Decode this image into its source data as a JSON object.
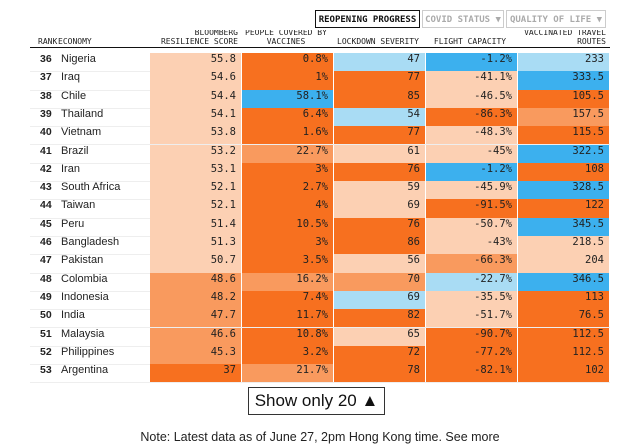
{
  "tabs": [
    "REOPENING PROGRESS",
    "COVID STATUS ▼",
    "QUALITY OF LIFE ▼"
  ],
  "columns": [
    "RANK",
    "ECONOMY",
    "BLOOMBERG RESILIENCE SCORE",
    "PEOPLE COVERED BY VACCINES",
    "LOCKDOWN SEVERITY",
    "FLIGHT CAPACITY",
    "VACCINATED TRAVEL ROUTES"
  ],
  "rows": [
    {
      "rank": "36",
      "economy": "Nigeria",
      "cells": [
        "55.8",
        "0.8%",
        "47",
        "-1.2%",
        "233"
      ],
      "colors": [
        "#fcd0b3",
        "#f7701f",
        "#a9dcf4",
        "#3cb0ee",
        "#a9dcf4"
      ]
    },
    {
      "rank": "37",
      "economy": "Iraq",
      "cells": [
        "54.6",
        "1%",
        "77",
        "-41.1%",
        "333.5"
      ],
      "colors": [
        "#fcd0b3",
        "#f7701f",
        "#f7701f",
        "#fcd0b3",
        "#3cb0ee"
      ]
    },
    {
      "rank": "38",
      "economy": "Chile",
      "cells": [
        "54.4",
        "58.1%",
        "85",
        "-46.5%",
        "105.5"
      ],
      "colors": [
        "#fcd0b3",
        "#3cb0ee",
        "#f7701f",
        "#fcd0b3",
        "#f7701f"
      ]
    },
    {
      "rank": "39",
      "economy": "Thailand",
      "cells": [
        "54.1",
        "6.4%",
        "54",
        "-86.3%",
        "157.5"
      ],
      "colors": [
        "#fcd0b3",
        "#f7701f",
        "#a9dcf4",
        "#f7701f",
        "#f99a5e"
      ]
    },
    {
      "rank": "40",
      "economy": "Vietnam",
      "cells": [
        "53.8",
        "1.6%",
        "77",
        "-48.3%",
        "115.5"
      ],
      "colors": [
        "#fcd0b3",
        "#f7701f",
        "#f7701f",
        "#fcd0b3",
        "#f7701f"
      ]
    },
    {
      "rank": "41",
      "economy": "Brazil",
      "cells": [
        "53.2",
        "22.7%",
        "61",
        "-45%",
        "322.5"
      ],
      "colors": [
        "#fcd0b3",
        "#f99a5e",
        "#fcd0b3",
        "#fcd0b3",
        "#3cb0ee"
      ]
    },
    {
      "rank": "42",
      "economy": "Iran",
      "cells": [
        "53.1",
        "3%",
        "76",
        "-1.2%",
        "108"
      ],
      "colors": [
        "#fcd0b3",
        "#f7701f",
        "#f7701f",
        "#3cb0ee",
        "#f7701f"
      ]
    },
    {
      "rank": "43",
      "economy": "South Africa",
      "cells": [
        "52.1",
        "2.7%",
        "59",
        "-45.9%",
        "328.5"
      ],
      "colors": [
        "#fcd0b3",
        "#f7701f",
        "#fcd0b3",
        "#fcd0b3",
        "#3cb0ee"
      ]
    },
    {
      "rank": "44",
      "economy": "Taiwan",
      "cells": [
        "52.1",
        "4%",
        "69",
        "-91.5%",
        "122"
      ],
      "colors": [
        "#fcd0b3",
        "#f7701f",
        "#fcd0b3",
        "#f7701f",
        "#f7701f"
      ]
    },
    {
      "rank": "45",
      "economy": "Peru",
      "cells": [
        "51.4",
        "10.5%",
        "76",
        "-50.7%",
        "345.5"
      ],
      "colors": [
        "#fcd0b3",
        "#f7701f",
        "#f7701f",
        "#fcd0b3",
        "#3cb0ee"
      ]
    },
    {
      "rank": "46",
      "economy": "Bangladesh",
      "cells": [
        "51.3",
        "3%",
        "86",
        "-43%",
        "218.5"
      ],
      "colors": [
        "#fcd0b3",
        "#f7701f",
        "#f7701f",
        "#fcd0b3",
        "#fcd0b3"
      ]
    },
    {
      "rank": "47",
      "economy": "Pakistan",
      "cells": [
        "50.7",
        "3.5%",
        "56",
        "-66.3%",
        "204"
      ],
      "colors": [
        "#fcd0b3",
        "#f7701f",
        "#fcd0b3",
        "#f99a5e",
        "#fcd0b3"
      ]
    },
    {
      "rank": "48",
      "economy": "Colombia",
      "cells": [
        "48.6",
        "16.2%",
        "70",
        "-22.7%",
        "346.5"
      ],
      "colors": [
        "#f99a5e",
        "#f99a5e",
        "#f99a5e",
        "#a9dcf4",
        "#3cb0ee"
      ]
    },
    {
      "rank": "49",
      "economy": "Indonesia",
      "cells": [
        "48.2",
        "7.4%",
        "69",
        "-35.5%",
        "113"
      ],
      "colors": [
        "#f99a5e",
        "#f7701f",
        "#a9dcf4",
        "#fcd0b3",
        "#f7701f"
      ]
    },
    {
      "rank": "50",
      "economy": "India",
      "cells": [
        "47.7",
        "11.7%",
        "82",
        "-51.7%",
        "76.5"
      ],
      "colors": [
        "#f99a5e",
        "#f7701f",
        "#f7701f",
        "#fcd0b3",
        "#f7701f"
      ]
    },
    {
      "rank": "51",
      "economy": "Malaysia",
      "cells": [
        "46.6",
        "10.8%",
        "65",
        "-90.7%",
        "112.5"
      ],
      "colors": [
        "#f99a5e",
        "#f7701f",
        "#fcd0b3",
        "#f7701f",
        "#f7701f"
      ]
    },
    {
      "rank": "52",
      "economy": "Philippines",
      "cells": [
        "45.3",
        "3.2%",
        "72",
        "-77.2%",
        "112.5"
      ],
      "colors": [
        "#f99a5e",
        "#f7701f",
        "#f7701f",
        "#f7701f",
        "#f7701f"
      ]
    },
    {
      "rank": "53",
      "economy": "Argentina",
      "cells": [
        "37",
        "21.7%",
        "78",
        "-82.1%",
        "102"
      ],
      "colors": [
        "#f7701f",
        "#f99a5e",
        "#f7701f",
        "#f7701f",
        "#f7701f"
      ]
    }
  ],
  "button": "Show only 20 ▲",
  "note": "Note: Latest data as of June 27, 2pm Hong Kong time. See more"
}
